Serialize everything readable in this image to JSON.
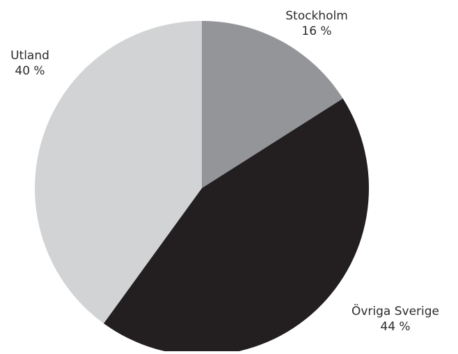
{
  "chart_data": {
    "type": "pie",
    "title": "",
    "start_angle_deg": 0,
    "direction": "clockwise",
    "slices": [
      {
        "label": "Stockholm",
        "value": 16,
        "value_text": "16 %",
        "color": "#939598"
      },
      {
        "label": "Övriga Sverige",
        "value": 44,
        "value_text": "44 %",
        "color": "#231f20"
      },
      {
        "label": "Utland",
        "value": 40,
        "value_text": "40 %",
        "color": "#d1d3d4"
      }
    ]
  }
}
